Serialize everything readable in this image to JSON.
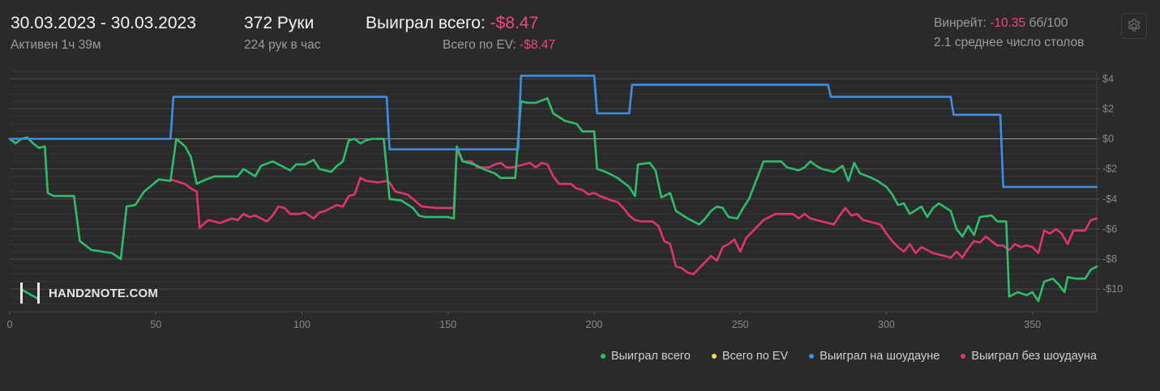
{
  "header": {
    "date_range": "30.03.2023 - 30.03.2023",
    "active_time": "Активен 1ч 39м",
    "hands": "372 Руки",
    "hands_per_hour": "224 рук в час",
    "won_total_label": "Выиграл всего:",
    "won_total_value": "-$8.47",
    "ev_total_label": "Всего по EV:",
    "ev_total_value": "-$8.47",
    "winrate_label": "Винрейт:",
    "winrate_value": "-10.35",
    "winrate_unit": "бб/100",
    "avg_tables": "2.1 среднее число столов"
  },
  "logo": {
    "text": "HAND2NOTE.COM"
  },
  "icons": {
    "settings": "gear-icon",
    "logo": "hand2note-logo-icon"
  },
  "colors": {
    "green": "#2ebd6b",
    "yellow": "#f0e442",
    "blue": "#3d8ee6",
    "pink": "#e0346f",
    "red_text": "#f0487a"
  },
  "chart_data": {
    "type": "line",
    "xlim": [
      0,
      372
    ],
    "ylim": [
      -11.5,
      4.5
    ],
    "x_ticks": [
      0,
      50,
      100,
      150,
      200,
      250,
      300,
      350
    ],
    "y_ticks": [
      4,
      2,
      0,
      -2,
      -4,
      -6,
      -8,
      -10
    ],
    "y_tick_labels": [
      "$4",
      "$2",
      "$0",
      "-$2",
      "-$4",
      "-$6",
      "-$8",
      "-$10"
    ],
    "x_tick_labels": [
      "0",
      "50",
      "100",
      "150",
      "200",
      "250",
      "300",
      "350"
    ],
    "grid": true,
    "legend_position": "bottom-right",
    "series": [
      {
        "name": "Выиграл всего",
        "color": "#2ebd6b",
        "points": [
          [
            0,
            0
          ],
          [
            2,
            -0.3
          ],
          [
            4,
            0
          ],
          [
            6,
            0.1
          ],
          [
            8,
            -0.3
          ],
          [
            10,
            -0.6
          ],
          [
            12,
            -0.5
          ],
          [
            13,
            -3.6
          ],
          [
            15,
            -3.8
          ],
          [
            22,
            -3.8
          ],
          [
            24,
            -6.8
          ],
          [
            28,
            -7.4
          ],
          [
            35,
            -7.6
          ],
          [
            38,
            -8
          ],
          [
            40,
            -4.5
          ],
          [
            43,
            -4.4
          ],
          [
            46,
            -3.5
          ],
          [
            48,
            -3.2
          ],
          [
            51,
            -2.7
          ],
          [
            55,
            -2.8
          ],
          [
            57,
            0
          ],
          [
            60,
            -0.5
          ],
          [
            62,
            -1.2
          ],
          [
            64,
            -3
          ],
          [
            66,
            -2.8
          ],
          [
            70,
            -2.5
          ],
          [
            78,
            -2.5
          ],
          [
            80,
            -2
          ],
          [
            84,
            -2.5
          ],
          [
            86,
            -1.8
          ],
          [
            90,
            -1.5
          ],
          [
            94,
            -1.9
          ],
          [
            96,
            -2.1
          ],
          [
            98,
            -1.7
          ],
          [
            101,
            -1.7
          ],
          [
            104,
            -1.4
          ],
          [
            106,
            -2.0
          ],
          [
            110,
            -2.2
          ],
          [
            112,
            -1.8
          ],
          [
            114,
            -1.5
          ],
          [
            116,
            -0.1
          ],
          [
            118,
            0
          ],
          [
            120,
            -0.3
          ],
          [
            122,
            -0.1
          ],
          [
            124,
            0
          ],
          [
            126,
            0
          ],
          [
            128,
            0
          ],
          [
            130,
            -4.0
          ],
          [
            134,
            -4.1
          ],
          [
            138,
            -4.6
          ],
          [
            140,
            -5.1
          ],
          [
            142,
            -5.2
          ],
          [
            146,
            -5.2
          ],
          [
            150,
            -5.2
          ],
          [
            152,
            -5.3
          ],
          [
            153,
            -0.5
          ],
          [
            155,
            -1.5
          ],
          [
            159,
            -1.7
          ],
          [
            162,
            -2.0
          ],
          [
            166,
            -2.3
          ],
          [
            168,
            -2.6
          ],
          [
            173,
            -2.6
          ],
          [
            175,
            2.5
          ],
          [
            177,
            2.4
          ],
          [
            180,
            2.4
          ],
          [
            184,
            2.7
          ],
          [
            186,
            1.7
          ],
          [
            190,
            1.2
          ],
          [
            194,
            1.0
          ],
          [
            196,
            0.5
          ],
          [
            200,
            0.5
          ],
          [
            201,
            -2.0
          ],
          [
            204,
            -2.2
          ],
          [
            208,
            -2.6
          ],
          [
            212,
            -3.2
          ],
          [
            214,
            -3.8
          ],
          [
            215,
            -1.7
          ],
          [
            219,
            -1.6
          ],
          [
            221,
            -2.1
          ],
          [
            223,
            -3.9
          ],
          [
            226,
            -3.6
          ],
          [
            228,
            -4.8
          ],
          [
            232,
            -5.3
          ],
          [
            236,
            -5.7
          ],
          [
            238,
            -5.3
          ],
          [
            240,
            -4.8
          ],
          [
            242,
            -4.5
          ],
          [
            244,
            -4.6
          ],
          [
            246,
            -5.2
          ],
          [
            249,
            -5.3
          ],
          [
            251,
            -4.6
          ],
          [
            253,
            -4.0
          ],
          [
            255,
            -3.0
          ],
          [
            258,
            -1.5
          ],
          [
            264,
            -1.5
          ],
          [
            266,
            -1.9
          ],
          [
            270,
            -2.1
          ],
          [
            272,
            -1.9
          ],
          [
            274,
            -1.5
          ],
          [
            276,
            -1.8
          ],
          [
            278,
            -2.0
          ],
          [
            282,
            -2.2
          ],
          [
            285,
            -1.8
          ],
          [
            287,
            -2.8
          ],
          [
            289,
            -1.6
          ],
          [
            291,
            -2.3
          ],
          [
            295,
            -2.6
          ],
          [
            297,
            -2.8
          ],
          [
            300,
            -3.2
          ],
          [
            302,
            -3.7
          ],
          [
            304,
            -4.4
          ],
          [
            306,
            -4.3
          ],
          [
            308,
            -5.0
          ],
          [
            312,
            -4.5
          ],
          [
            314,
            -5.2
          ],
          [
            316,
            -4.6
          ],
          [
            318,
            -4.3
          ],
          [
            322,
            -4.8
          ],
          [
            324,
            -6.0
          ],
          [
            326,
            -6.5
          ],
          [
            328,
            -5.8
          ],
          [
            330,
            -6.4
          ],
          [
            332,
            -5.2
          ],
          [
            336,
            -5.1
          ],
          [
            338,
            -5.5
          ],
          [
            341,
            -5.5
          ],
          [
            342,
            -10.5
          ],
          [
            345,
            -10.2
          ],
          [
            348,
            -10.4
          ],
          [
            350,
            -10.2
          ],
          [
            352,
            -10.8
          ],
          [
            354,
            -9.5
          ],
          [
            357,
            -9.3
          ],
          [
            359,
            -9.7
          ],
          [
            361,
            -10.2
          ],
          [
            362,
            -9.2
          ],
          [
            365,
            -9.3
          ],
          [
            368,
            -9.3
          ],
          [
            370,
            -8.7
          ],
          [
            372,
            -8.5
          ]
        ]
      },
      {
        "name": "Всего по EV",
        "color": "#f0e442",
        "points": []
      },
      {
        "name": "Выиграл на шоудауне",
        "color": "#3d8ee6",
        "points": [
          [
            0,
            0
          ],
          [
            55,
            0
          ],
          [
            56,
            2.8
          ],
          [
            129,
            2.8
          ],
          [
            130,
            -0.7
          ],
          [
            174,
            -0.7
          ],
          [
            175,
            4.2
          ],
          [
            200,
            4.2
          ],
          [
            201,
            1.7
          ],
          [
            212,
            1.7
          ],
          [
            213,
            3.6
          ],
          [
            280,
            3.6
          ],
          [
            281,
            2.8
          ],
          [
            322,
            2.8
          ],
          [
            323,
            1.6
          ],
          [
            339,
            1.6
          ],
          [
            340,
            -3.2
          ],
          [
            372,
            -3.2
          ]
        ]
      },
      {
        "name": "Выиграл без шоудауна",
        "color": "#e0346f",
        "points": [
          [
            55,
            -2.7
          ],
          [
            60,
            -3.0
          ],
          [
            62,
            -3.3
          ],
          [
            64,
            -3.5
          ],
          [
            65,
            -5.9
          ],
          [
            68,
            -5.4
          ],
          [
            72,
            -5.6
          ],
          [
            76,
            -5.3
          ],
          [
            78,
            -5.4
          ],
          [
            80,
            -5.0
          ],
          [
            82,
            -5.2
          ],
          [
            84,
            -5.1
          ],
          [
            86,
            -5.3
          ],
          [
            88,
            -5.5
          ],
          [
            90,
            -5.1
          ],
          [
            92,
            -4.5
          ],
          [
            94,
            -4.6
          ],
          [
            96,
            -5.0
          ],
          [
            99,
            -5.0
          ],
          [
            101,
            -4.9
          ],
          [
            104,
            -5.3
          ],
          [
            106,
            -4.9
          ],
          [
            108,
            -4.8
          ],
          [
            110,
            -4.6
          ],
          [
            112,
            -4.4
          ],
          [
            114,
            -4.5
          ],
          [
            116,
            -3.8
          ],
          [
            118,
            -3.7
          ],
          [
            120,
            -2.6
          ],
          [
            122,
            -2.8
          ],
          [
            126,
            -2.9
          ],
          [
            129,
            -2.8
          ],
          [
            130,
            -2.9
          ],
          [
            132,
            -3.5
          ],
          [
            134,
            -3.6
          ],
          [
            136,
            -3.7
          ],
          [
            138,
            -4.0
          ],
          [
            141,
            -4.5
          ],
          [
            146,
            -4.6
          ],
          [
            150,
            -4.6
          ],
          [
            152,
            -4.6
          ],
          [
            153,
            -0.7
          ],
          [
            155,
            -1.5
          ],
          [
            158,
            -1.5
          ],
          [
            160,
            -1.9
          ],
          [
            164,
            -1.9
          ],
          [
            166,
            -1.7
          ],
          [
            168,
            -1.6
          ],
          [
            170,
            -1.9
          ],
          [
            172,
            -1.9
          ],
          [
            174,
            -1.8
          ],
          [
            176,
            -1.7
          ],
          [
            178,
            -1.6
          ],
          [
            180,
            -1.9
          ],
          [
            182,
            -1.6
          ],
          [
            184,
            -1.7
          ],
          [
            186,
            -2.5
          ],
          [
            188,
            -3.0
          ],
          [
            192,
            -3.0
          ],
          [
            194,
            -3.3
          ],
          [
            196,
            -3.4
          ],
          [
            198,
            -3.7
          ],
          [
            200,
            -3.6
          ],
          [
            202,
            -3.8
          ],
          [
            206,
            -4.1
          ],
          [
            208,
            -4.2
          ],
          [
            210,
            -4.6
          ],
          [
            212,
            -5.1
          ],
          [
            214,
            -5.4
          ],
          [
            216,
            -5.5
          ],
          [
            220,
            -5.5
          ],
          [
            222,
            -5.8
          ],
          [
            224,
            -6.8
          ],
          [
            226,
            -7.0
          ],
          [
            228,
            -8.5
          ],
          [
            230,
            -8.6
          ],
          [
            232,
            -8.9
          ],
          [
            234,
            -9.0
          ],
          [
            236,
            -8.6
          ],
          [
            238,
            -8.2
          ],
          [
            240,
            -7.8
          ],
          [
            242,
            -8.1
          ],
          [
            244,
            -7.2
          ],
          [
            246,
            -7.0
          ],
          [
            248,
            -6.7
          ],
          [
            250,
            -7.5
          ],
          [
            252,
            -6.6
          ],
          [
            254,
            -6.2
          ],
          [
            256,
            -5.8
          ],
          [
            258,
            -5.4
          ],
          [
            262,
            -5.0
          ],
          [
            268,
            -5.0
          ],
          [
            270,
            -5.3
          ],
          [
            272,
            -5.0
          ],
          [
            274,
            -5.3
          ],
          [
            276,
            -5.4
          ],
          [
            278,
            -5.5
          ],
          [
            282,
            -5.7
          ],
          [
            284,
            -5.1
          ],
          [
            286,
            -4.6
          ],
          [
            288,
            -5.1
          ],
          [
            290,
            -5.0
          ],
          [
            292,
            -5.4
          ],
          [
            296,
            -5.6
          ],
          [
            298,
            -5.7
          ],
          [
            300,
            -6.3
          ],
          [
            302,
            -6.8
          ],
          [
            304,
            -7.2
          ],
          [
            306,
            -7.5
          ],
          [
            308,
            -7.0
          ],
          [
            310,
            -7.6
          ],
          [
            312,
            -7.2
          ],
          [
            314,
            -7.4
          ],
          [
            316,
            -7.6
          ],
          [
            320,
            -7.8
          ],
          [
            322,
            -7.9
          ],
          [
            324,
            -7.5
          ],
          [
            326,
            -7.9
          ],
          [
            328,
            -7.3
          ],
          [
            330,
            -6.8
          ],
          [
            332,
            -6.9
          ],
          [
            334,
            -6.5
          ],
          [
            336,
            -6.8
          ],
          [
            338,
            -7.1
          ],
          [
            340,
            -7.1
          ],
          [
            342,
            -7.4
          ],
          [
            344,
            -7.0
          ],
          [
            346,
            -7.2
          ],
          [
            348,
            -7.1
          ],
          [
            350,
            -7.2
          ],
          [
            352,
            -7.6
          ],
          [
            354,
            -6.1
          ],
          [
            356,
            -6.3
          ],
          [
            358,
            -6.0
          ],
          [
            360,
            -6.3
          ],
          [
            362,
            -7.0
          ],
          [
            364,
            -6.1
          ],
          [
            368,
            -6.1
          ],
          [
            370,
            -5.4
          ],
          [
            372,
            -5.3
          ]
        ]
      }
    ]
  }
}
